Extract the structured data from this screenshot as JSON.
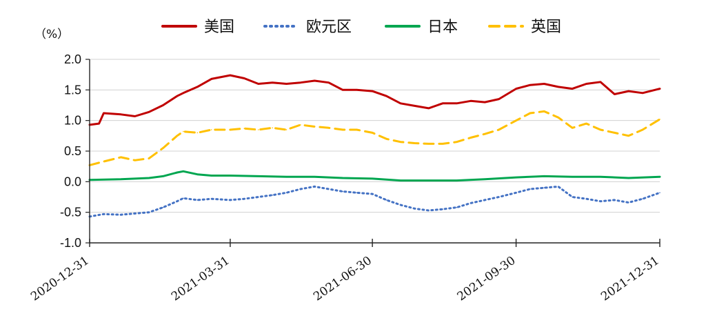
{
  "chart_data": {
    "type": "line",
    "ylabel": "（%）",
    "ylim": [
      -1.0,
      2.0
    ],
    "yticks": [
      "2.0",
      "1.5",
      "1.0",
      "0.5",
      "0.0",
      "-0.5",
      "-1.0"
    ],
    "ytick_values": [
      2.0,
      1.5,
      1.0,
      0.5,
      0.0,
      -0.5,
      -1.0
    ],
    "xlim": [
      "2020-12-31",
      "2021-12-31"
    ],
    "xticks": [
      "2020-12-31",
      "2021-03-31",
      "2021-06-30",
      "2021-09-30",
      "2021-12-31"
    ],
    "grid": "horizontal",
    "legend_position": "top",
    "series": [
      {
        "name": "美国",
        "color": "#c00000",
        "style": "solid",
        "points": [
          [
            "2020-12-31",
            0.93
          ],
          [
            "2021-01-06",
            0.95
          ],
          [
            "2021-01-09",
            1.12
          ],
          [
            "2021-01-20",
            1.1
          ],
          [
            "2021-01-29",
            1.07
          ],
          [
            "2021-02-07",
            1.14
          ],
          [
            "2021-02-16",
            1.25
          ],
          [
            "2021-02-25",
            1.4
          ],
          [
            "2021-03-01",
            1.45
          ],
          [
            "2021-03-10",
            1.55
          ],
          [
            "2021-03-19",
            1.68
          ],
          [
            "2021-03-31",
            1.74
          ],
          [
            "2021-04-09",
            1.69
          ],
          [
            "2021-04-18",
            1.6
          ],
          [
            "2021-04-27",
            1.62
          ],
          [
            "2021-05-06",
            1.6
          ],
          [
            "2021-05-15",
            1.62
          ],
          [
            "2021-05-24",
            1.65
          ],
          [
            "2021-06-02",
            1.62
          ],
          [
            "2021-06-11",
            1.5
          ],
          [
            "2021-06-20",
            1.5
          ],
          [
            "2021-06-30",
            1.48
          ],
          [
            "2021-07-09",
            1.4
          ],
          [
            "2021-07-18",
            1.28
          ],
          [
            "2021-07-27",
            1.24
          ],
          [
            "2021-08-05",
            1.2
          ],
          [
            "2021-08-14",
            1.28
          ],
          [
            "2021-08-23",
            1.28
          ],
          [
            "2021-09-01",
            1.32
          ],
          [
            "2021-09-10",
            1.3
          ],
          [
            "2021-09-19",
            1.35
          ],
          [
            "2021-09-30",
            1.52
          ],
          [
            "2021-10-09",
            1.58
          ],
          [
            "2021-10-18",
            1.6
          ],
          [
            "2021-10-27",
            1.55
          ],
          [
            "2021-11-05",
            1.52
          ],
          [
            "2021-11-14",
            1.6
          ],
          [
            "2021-11-23",
            1.63
          ],
          [
            "2021-12-02",
            1.43
          ],
          [
            "2021-12-11",
            1.48
          ],
          [
            "2021-12-20",
            1.45
          ],
          [
            "2021-12-31",
            1.52
          ]
        ]
      },
      {
        "name": "欧元区",
        "color": "#4472c4",
        "style": "dotted",
        "points": [
          [
            "2020-12-31",
            -0.57
          ],
          [
            "2021-01-09",
            -0.53
          ],
          [
            "2021-01-20",
            -0.54
          ],
          [
            "2021-01-29",
            -0.52
          ],
          [
            "2021-02-07",
            -0.5
          ],
          [
            "2021-02-16",
            -0.42
          ],
          [
            "2021-02-25",
            -0.32
          ],
          [
            "2021-03-01",
            -0.27
          ],
          [
            "2021-03-10",
            -0.3
          ],
          [
            "2021-03-19",
            -0.28
          ],
          [
            "2021-03-31",
            -0.3
          ],
          [
            "2021-04-09",
            -0.28
          ],
          [
            "2021-04-18",
            -0.25
          ],
          [
            "2021-04-27",
            -0.22
          ],
          [
            "2021-05-06",
            -0.18
          ],
          [
            "2021-05-15",
            -0.12
          ],
          [
            "2021-05-24",
            -0.08
          ],
          [
            "2021-06-02",
            -0.12
          ],
          [
            "2021-06-11",
            -0.16
          ],
          [
            "2021-06-20",
            -0.18
          ],
          [
            "2021-06-30",
            -0.2
          ],
          [
            "2021-07-09",
            -0.3
          ],
          [
            "2021-07-18",
            -0.38
          ],
          [
            "2021-07-27",
            -0.44
          ],
          [
            "2021-08-05",
            -0.47
          ],
          [
            "2021-08-14",
            -0.45
          ],
          [
            "2021-08-23",
            -0.42
          ],
          [
            "2021-09-01",
            -0.35
          ],
          [
            "2021-09-10",
            -0.3
          ],
          [
            "2021-09-19",
            -0.25
          ],
          [
            "2021-09-30",
            -0.18
          ],
          [
            "2021-10-09",
            -0.12
          ],
          [
            "2021-10-18",
            -0.1
          ],
          [
            "2021-10-27",
            -0.08
          ],
          [
            "2021-11-05",
            -0.25
          ],
          [
            "2021-11-14",
            -0.28
          ],
          [
            "2021-11-23",
            -0.32
          ],
          [
            "2021-12-02",
            -0.3
          ],
          [
            "2021-12-11",
            -0.34
          ],
          [
            "2021-12-20",
            -0.28
          ],
          [
            "2021-12-31",
            -0.18
          ]
        ]
      },
      {
        "name": "日本",
        "color": "#00a650",
        "style": "solid",
        "points": [
          [
            "2020-12-31",
            0.03
          ],
          [
            "2021-01-20",
            0.04
          ],
          [
            "2021-02-07",
            0.06
          ],
          [
            "2021-02-16",
            0.09
          ],
          [
            "2021-02-25",
            0.15
          ],
          [
            "2021-03-01",
            0.17
          ],
          [
            "2021-03-10",
            0.12
          ],
          [
            "2021-03-19",
            0.1
          ],
          [
            "2021-03-31",
            0.1
          ],
          [
            "2021-04-18",
            0.09
          ],
          [
            "2021-05-06",
            0.08
          ],
          [
            "2021-05-24",
            0.08
          ],
          [
            "2021-06-11",
            0.06
          ],
          [
            "2021-06-30",
            0.05
          ],
          [
            "2021-07-18",
            0.02
          ],
          [
            "2021-08-05",
            0.02
          ],
          [
            "2021-08-23",
            0.02
          ],
          [
            "2021-09-10",
            0.04
          ],
          [
            "2021-09-30",
            0.07
          ],
          [
            "2021-10-18",
            0.09
          ],
          [
            "2021-11-05",
            0.08
          ],
          [
            "2021-11-23",
            0.08
          ],
          [
            "2021-12-11",
            0.06
          ],
          [
            "2021-12-31",
            0.08
          ]
        ]
      },
      {
        "name": "英国",
        "color": "#ffc000",
        "style": "dashed",
        "points": [
          [
            "2020-12-31",
            0.27
          ],
          [
            "2021-01-09",
            0.33
          ],
          [
            "2021-01-20",
            0.4
          ],
          [
            "2021-01-29",
            0.35
          ],
          [
            "2021-02-07",
            0.38
          ],
          [
            "2021-02-16",
            0.55
          ],
          [
            "2021-02-25",
            0.75
          ],
          [
            "2021-03-01",
            0.82
          ],
          [
            "2021-03-10",
            0.8
          ],
          [
            "2021-03-19",
            0.85
          ],
          [
            "2021-03-31",
            0.85
          ],
          [
            "2021-04-09",
            0.87
          ],
          [
            "2021-04-18",
            0.85
          ],
          [
            "2021-04-27",
            0.88
          ],
          [
            "2021-05-06",
            0.85
          ],
          [
            "2021-05-15",
            0.93
          ],
          [
            "2021-05-24",
            0.9
          ],
          [
            "2021-06-02",
            0.88
          ],
          [
            "2021-06-11",
            0.85
          ],
          [
            "2021-06-20",
            0.85
          ],
          [
            "2021-06-30",
            0.8
          ],
          [
            "2021-07-09",
            0.7
          ],
          [
            "2021-07-18",
            0.65
          ],
          [
            "2021-07-27",
            0.63
          ],
          [
            "2021-08-05",
            0.62
          ],
          [
            "2021-08-14",
            0.62
          ],
          [
            "2021-08-23",
            0.65
          ],
          [
            "2021-09-01",
            0.72
          ],
          [
            "2021-09-10",
            0.78
          ],
          [
            "2021-09-19",
            0.85
          ],
          [
            "2021-09-30",
            1.0
          ],
          [
            "2021-10-09",
            1.12
          ],
          [
            "2021-10-18",
            1.15
          ],
          [
            "2021-10-27",
            1.05
          ],
          [
            "2021-11-05",
            0.88
          ],
          [
            "2021-11-14",
            0.95
          ],
          [
            "2021-11-23",
            0.85
          ],
          [
            "2021-12-02",
            0.8
          ],
          [
            "2021-12-11",
            0.75
          ],
          [
            "2021-12-20",
            0.85
          ],
          [
            "2021-12-31",
            1.02
          ]
        ]
      }
    ]
  }
}
